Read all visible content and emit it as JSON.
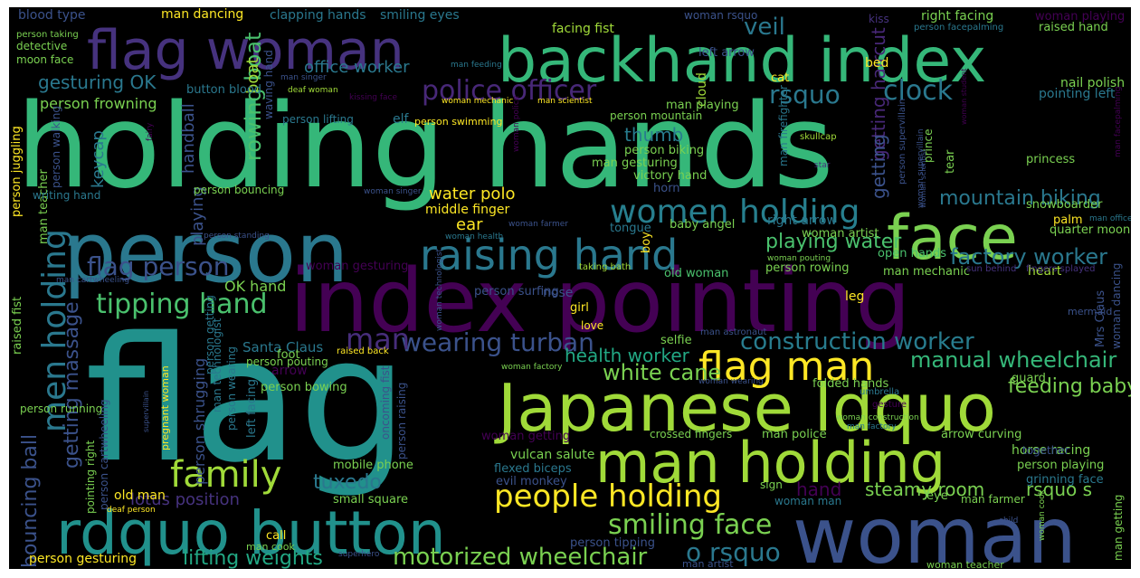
{
  "colors": {
    "background": "#000000",
    "palette": [
      "#440154",
      "#46327e",
      "#365c8d",
      "#277f8e",
      "#1fa187",
      "#4ac16d",
      "#a0da39",
      "#fde725"
    ]
  },
  "words": [
    {
      "text": "holding hands",
      "color": "#35b779"
    },
    {
      "text": "flag",
      "color": "#21918c"
    },
    {
      "text": "index pointing",
      "color": "#440154"
    },
    {
      "text": "person",
      "color": "#2a788e"
    },
    {
      "text": "woman",
      "color": "#3b528b"
    },
    {
      "text": "Japanese ldquo",
      "color": "#a0da39"
    },
    {
      "text": "backhand index",
      "color": "#35b779"
    },
    {
      "text": "flag woman",
      "color": "#46327e"
    },
    {
      "text": "rdquo button",
      "color": "#21918c"
    },
    {
      "text": "man holding",
      "color": "#a0da39"
    },
    {
      "text": "face",
      "color": "#7ad151"
    },
    {
      "text": "raising hand",
      "color": "#2a788e"
    },
    {
      "text": "women holding",
      "color": "#277f8e"
    },
    {
      "text": "flag man",
      "color": "#fde725"
    },
    {
      "text": "family",
      "color": "#a0da39"
    },
    {
      "text": "people holding",
      "color": "#fde725"
    },
    {
      "text": "men holding",
      "color": "#2a788e"
    },
    {
      "text": "tipping hand",
      "color": "#4ac16d"
    },
    {
      "text": "smiling face",
      "color": "#7ad151"
    },
    {
      "text": "construction worker",
      "color": "#287c8e"
    },
    {
      "text": "wearing turban",
      "color": "#3b528b"
    },
    {
      "text": "police officer",
      "color": "#482878"
    },
    {
      "text": "clock",
      "color": "#2a788e"
    },
    {
      "text": "flag person",
      "color": "#3b528b"
    },
    {
      "text": "motorized wheelchair",
      "color": "#7ad151"
    },
    {
      "text": "o rsquo",
      "color": "#2a788e"
    },
    {
      "text": "lifting weights",
      "color": "#22a884"
    },
    {
      "text": "tuxedo",
      "color": "#2a788e"
    },
    {
      "text": "man",
      "color": "#472d7b"
    },
    {
      "text": "manual wheelchair",
      "color": "#35b779"
    },
    {
      "text": "mountain biking",
      "color": "#2a788e"
    },
    {
      "text": "factory worker",
      "color": "#2a788e"
    },
    {
      "text": "playing water",
      "color": "#4ac16d"
    },
    {
      "text": "white cane",
      "color": "#7ad151"
    },
    {
      "text": "feeding baby",
      "color": "#7ad151"
    },
    {
      "text": "health worker",
      "color": "#22a884"
    },
    {
      "text": "rsquo",
      "color": "#2a788e"
    },
    {
      "text": "veil",
      "color": "#2a788e"
    },
    {
      "text": "steamy room",
      "color": "#7ad151"
    },
    {
      "text": "hand",
      "color": "#440154"
    },
    {
      "text": "rsquo s",
      "color": "#7ad151"
    },
    {
      "text": "getting massage",
      "color": "#3b528b"
    },
    {
      "text": "bouncing ball",
      "color": "#3b528b"
    },
    {
      "text": "rowing boat",
      "color": "#4ac16d"
    },
    {
      "text": "gesturing OK",
      "color": "#2a788e"
    },
    {
      "text": "office worker",
      "color": "#2a788e"
    },
    {
      "text": "water polo",
      "color": "#fde725"
    },
    {
      "text": "lotus position",
      "color": "#46327e"
    },
    {
      "text": "thumb",
      "color": "#287c8e"
    },
    {
      "text": "keycap",
      "color": "#2a788e"
    },
    {
      "text": "handball",
      "color": "#3b528b"
    },
    {
      "text": "getting haircut",
      "color": "#482878"
    },
    {
      "text": "getting",
      "color": "#3b528b"
    },
    {
      "text": "ear",
      "color": "#fde725"
    },
    {
      "text": "person shrugging",
      "color": "#3b528b"
    },
    {
      "text": "OK hand",
      "color": "#7ad151"
    },
    {
      "text": "boat",
      "color": "#a0da39"
    },
    {
      "text": "playing",
      "color": "#3b528b"
    },
    {
      "text": "middle finger",
      "color": "#fde725"
    },
    {
      "text": "blood type",
      "color": "#3b528b"
    },
    {
      "text": "man dancing",
      "color": "#fde725"
    },
    {
      "text": "clapping hands",
      "color": "#2a788e"
    },
    {
      "text": "smiling eyes",
      "color": "#2a788e"
    },
    {
      "text": "facing fist",
      "color": "#a0da39"
    },
    {
      "text": "woman rsquo",
      "color": "#3b528b"
    },
    {
      "text": "kiss",
      "color": "#46327e"
    },
    {
      "text": "right facing",
      "color": "#7ad151"
    },
    {
      "text": "woman playing",
      "color": "#440154"
    },
    {
      "text": "raised hand",
      "color": "#7ad151"
    },
    {
      "text": "left arrow",
      "color": "#3b528b"
    },
    {
      "text": "person facepalming",
      "color": "#2a788e"
    },
    {
      "text": "person taking",
      "color": "#7ad151"
    },
    {
      "text": "detective",
      "color": "#7ad151"
    },
    {
      "text": "moon face",
      "color": "#7ad151"
    },
    {
      "text": "button blood",
      "color": "#2a788e"
    },
    {
      "text": "man feeding",
      "color": "#2a788e"
    },
    {
      "text": "bed",
      "color": "#fde725"
    },
    {
      "text": "nail polish",
      "color": "#7ad151"
    },
    {
      "text": "person frowning",
      "color": "#7ad151"
    },
    {
      "text": "man singer",
      "color": "#3b528b"
    },
    {
      "text": "deaf woman",
      "color": "#a0da39"
    },
    {
      "text": "waving hand",
      "color": "#3b528b"
    },
    {
      "text": "cloud",
      "color": "#a0da39"
    },
    {
      "text": "cat",
      "color": "#fde725"
    },
    {
      "text": "kissing face",
      "color": "#440154"
    },
    {
      "text": "pointing left",
      "color": "#2a788e"
    },
    {
      "text": "woman mechanic",
      "color": "#fde725"
    },
    {
      "text": "man scientist",
      "color": "#fde725"
    },
    {
      "text": "elf",
      "color": "#2a788e"
    },
    {
      "text": "man playing",
      "color": "#7ad151"
    },
    {
      "text": "person mountain",
      "color": "#7ad151"
    },
    {
      "text": "person lifting",
      "color": "#2a788e"
    },
    {
      "text": "person swimming",
      "color": "#fde725"
    },
    {
      "text": "woman police",
      "color": "#440154"
    },
    {
      "text": "woman student",
      "color": "#440154"
    },
    {
      "text": "man facepalming",
      "color": "#440154"
    },
    {
      "text": "skullcap",
      "color": "#a0da39"
    },
    {
      "text": "person biking",
      "color": "#7ad151"
    },
    {
      "text": "man firefighter",
      "color": "#2a788e"
    },
    {
      "text": "person supervillain",
      "color": "#3b528b"
    },
    {
      "text": "tear",
      "color": "#7ad151"
    },
    {
      "text": "fairy",
      "color": "#440154"
    },
    {
      "text": "person juggling",
      "color": "#fde725"
    },
    {
      "text": "person walking",
      "color": "#3b528b"
    },
    {
      "text": "man teacher",
      "color": "#7ad151"
    },
    {
      "text": "man gesturing",
      "color": "#7ad151"
    },
    {
      "text": "victory hand",
      "color": "#7ad151"
    },
    {
      "text": "horn",
      "color": "#3b528b"
    },
    {
      "text": "star",
      "color": "#46327e"
    },
    {
      "text": "prince",
      "color": "#7ad151"
    },
    {
      "text": "princess",
      "color": "#7ad151"
    },
    {
      "text": "woman supervillain",
      "color": "#3b528b"
    },
    {
      "text": "woman scientist",
      "color": "#3b528b"
    },
    {
      "text": "writing hand",
      "color": "#2a788e"
    },
    {
      "text": "person bouncing",
      "color": "#7ad151"
    },
    {
      "text": "woman singer",
      "color": "#3b528b"
    },
    {
      "text": "snowboarder",
      "color": "#7ad151"
    },
    {
      "text": "palm",
      "color": "#fde725"
    },
    {
      "text": "man office",
      "color": "#2a788e"
    },
    {
      "text": "quarter moon",
      "color": "#7ad151"
    },
    {
      "text": "person standing",
      "color": "#3b528b"
    },
    {
      "text": "woman farmer",
      "color": "#3b528b"
    },
    {
      "text": "tongue",
      "color": "#2a788e"
    },
    {
      "text": "baby angel",
      "color": "#7ad151"
    },
    {
      "text": "right arrow",
      "color": "#2a788e"
    },
    {
      "text": "woman artist",
      "color": "#7ad151"
    },
    {
      "text": "woman health",
      "color": "#2a788e"
    },
    {
      "text": "heart",
      "color": "#a0da39"
    },
    {
      "text": "boy",
      "color": "#fde725"
    },
    {
      "text": "open hands",
      "color": "#4ac16d"
    },
    {
      "text": "woman gesturing",
      "color": "#440154"
    },
    {
      "text": "person surfing",
      "color": "#3b528b"
    },
    {
      "text": "old woman",
      "color": "#4ac16d"
    },
    {
      "text": "person rowing",
      "color": "#7ad151"
    },
    {
      "text": "woman pouting",
      "color": "#7ad151"
    },
    {
      "text": "man mechanic",
      "color": "#7ad151"
    },
    {
      "text": "sun behind",
      "color": "#46327e"
    },
    {
      "text": "fingers splayed",
      "color": "#46327e"
    },
    {
      "text": "man cartwheeling",
      "color": "#3b528b"
    },
    {
      "text": "taking bath",
      "color": "#a0da39"
    },
    {
      "text": "nose",
      "color": "#3b528b"
    },
    {
      "text": "leg",
      "color": "#fde725"
    },
    {
      "text": "woman dancing",
      "color": "#3b528b"
    },
    {
      "text": "Mrs Claus",
      "color": "#3b528b"
    },
    {
      "text": "raised fist",
      "color": "#7ad151"
    },
    {
      "text": "woman technologist",
      "color": "#3b528b"
    },
    {
      "text": "girl",
      "color": "#fde725"
    },
    {
      "text": "love",
      "color": "#fde725"
    },
    {
      "text": "mermaid",
      "color": "#3b528b"
    },
    {
      "text": "man astronaut",
      "color": "#3b528b"
    },
    {
      "text": "Santa Claus",
      "color": "#2a788e"
    },
    {
      "text": "raised back",
      "color": "#fde725"
    },
    {
      "text": "selfie",
      "color": "#7ad151"
    },
    {
      "text": "person getting",
      "color": "#2a788e"
    },
    {
      "text": "foot",
      "color": "#7ad151"
    },
    {
      "text": "person pouting",
      "color": "#7ad151"
    },
    {
      "text": "arrow",
      "color": "#440154"
    },
    {
      "text": "woman factory",
      "color": "#7ad151"
    },
    {
      "text": "person wearing",
      "color": "#2a788e"
    },
    {
      "text": "man technologist",
      "color": "#2a788e"
    },
    {
      "text": "person bowing",
      "color": "#7ad151"
    },
    {
      "text": "woman wearing",
      "color": "#3b528b"
    },
    {
      "text": "umbrella",
      "color": "#2a788e"
    },
    {
      "text": "guard",
      "color": "#7ad151"
    },
    {
      "text": "folded hands",
      "color": "#7ad151"
    },
    {
      "text": "left facing",
      "color": "#2a788e"
    },
    {
      "text": "oncoming fist",
      "color": "#3b528b"
    },
    {
      "text": "person raising",
      "color": "#3b528b"
    },
    {
      "text": "person running",
      "color": "#7ad151"
    },
    {
      "text": "pregnant woman",
      "color": "#fde725"
    },
    {
      "text": "supervillain",
      "color": "#3b528b"
    },
    {
      "text": "gesture",
      "color": "#440154"
    },
    {
      "text": "woman construction",
      "color": "#7ad151"
    },
    {
      "text": "man factory",
      "color": "#2a788e"
    },
    {
      "text": "person cartwheeling",
      "color": "#3b528b"
    },
    {
      "text": "pointing right",
      "color": "#7ad151"
    },
    {
      "text": "woman getting",
      "color": "#440154"
    },
    {
      "text": "crossed fingers",
      "color": "#7ad151"
    },
    {
      "text": "man police",
      "color": "#7ad151"
    },
    {
      "text": "arrow curving",
      "color": "#7ad151"
    },
    {
      "text": "horse racing",
      "color": "#7ad151"
    },
    {
      "text": "together",
      "color": "#3b528b"
    },
    {
      "text": "vulcan salute",
      "color": "#7ad151"
    },
    {
      "text": "flexed biceps",
      "color": "#2a788e"
    },
    {
      "text": "evil monkey",
      "color": "#3b528b"
    },
    {
      "text": "person playing",
      "color": "#7ad151"
    },
    {
      "text": "grinning face",
      "color": "#2a788e"
    },
    {
      "text": "old man",
      "color": "#fde725"
    },
    {
      "text": "mobile phone",
      "color": "#7ad151"
    },
    {
      "text": "deaf person",
      "color": "#fde725"
    },
    {
      "text": "small square",
      "color": "#7ad151"
    },
    {
      "text": "sign",
      "color": "#7ad151"
    },
    {
      "text": "woman man",
      "color": "#2a788e"
    },
    {
      "text": "eye",
      "color": "#7ad151"
    },
    {
      "text": "man farmer",
      "color": "#7ad151"
    },
    {
      "text": "woman cook",
      "color": "#7ad151"
    },
    {
      "text": "man getting",
      "color": "#7ad151"
    },
    {
      "text": "call",
      "color": "#fde725"
    },
    {
      "text": "man cook",
      "color": "#7ad151"
    },
    {
      "text": "child",
      "color": "#3b528b"
    },
    {
      "text": "person tipping",
      "color": "#3b528b"
    },
    {
      "text": "person gesturing",
      "color": "#fde725"
    },
    {
      "text": "superhero",
      "color": "#3b528b"
    },
    {
      "text": "man artist",
      "color": "#3b528b"
    },
    {
      "text": "woman teacher",
      "color": "#7ad151"
    }
  ]
}
